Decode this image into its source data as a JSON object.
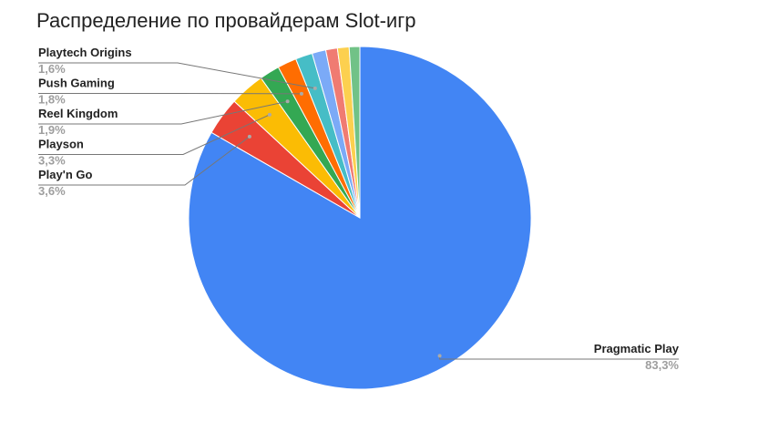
{
  "chart_data": {
    "type": "pie",
    "title": "Распределение по провайдерам Slot-игр",
    "categories": [
      "Pragmatic Play",
      "Play'n Go",
      "Playson",
      "Reel Kingdom",
      "Push Gaming",
      "Playtech Origins",
      null,
      null,
      null,
      null
    ],
    "values": [
      83.3,
      3.6,
      3.3,
      1.9,
      1.8,
      1.6,
      1.3,
      1.1,
      1.1,
      1.0
    ],
    "value_labels": [
      "83,3%",
      "3,6%",
      "3,3%",
      "1,9%",
      "1,8%",
      "1,6%",
      null,
      null,
      null,
      null
    ],
    "colors": [
      "#4285f4",
      "#ea4335",
      "#fbbc04",
      "#34a853",
      "#ff6d01",
      "#46bdc6",
      "#7baaf7",
      "#f07b72",
      "#fcd04f",
      "#71c287"
    ]
  }
}
